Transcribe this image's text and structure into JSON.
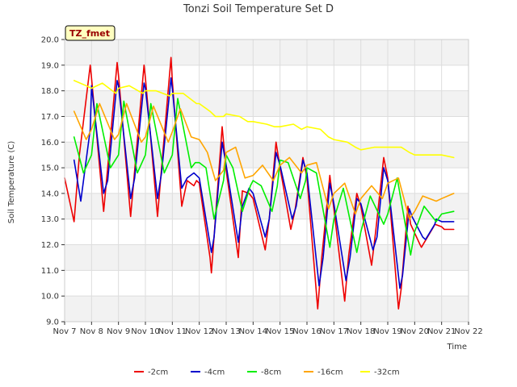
{
  "chart_data": {
    "type": "line",
    "title": "Tonzi Soil Temperature Set D",
    "xlabel": "Time",
    "ylabel": "Soil Temperature (C)",
    "badge": "TZ_fmet",
    "ylim": [
      9.0,
      20.0
    ],
    "xlim": [
      7,
      22
    ],
    "y_ticks": [
      "9.0",
      "10.0",
      "11.0",
      "12.0",
      "13.0",
      "14.0",
      "15.0",
      "16.0",
      "17.0",
      "18.0",
      "19.0",
      "20.0"
    ],
    "x_ticks": [
      {
        "t": 7,
        "label": "Nov 7"
      },
      {
        "t": 8,
        "label": "Nov 8"
      },
      {
        "t": 9,
        "label": "Nov 9"
      },
      {
        "t": 10,
        "label": "Nov 10"
      },
      {
        "t": 11,
        "label": "Nov 11"
      },
      {
        "t": 12,
        "label": "Nov 12"
      },
      {
        "t": 13,
        "label": "Nov 13"
      },
      {
        "t": 14,
        "label": "Nov 14"
      },
      {
        "t": 15,
        "label": "Nov 15"
      },
      {
        "t": 16,
        "label": "Nov 16"
      },
      {
        "t": 17,
        "label": "Nov 17"
      },
      {
        "t": 18,
        "label": "Nov 18"
      },
      {
        "t": 19,
        "label": "Nov 19"
      },
      {
        "t": 20,
        "label": "Nov 20"
      },
      {
        "t": 21,
        "label": "Nov 21"
      },
      {
        "t": 22,
        "label": "Nov 22"
      }
    ],
    "grid": true,
    "legend_position": "bottom",
    "series": [
      {
        "name": "-2cm",
        "color": "#ee0000",
        "x": [
          7.0,
          7.35,
          7.55,
          7.95,
          8.0,
          8.45,
          8.6,
          8.95,
          9.0,
          9.45,
          9.6,
          9.95,
          10.0,
          10.45,
          10.6,
          10.95,
          11.0,
          11.35,
          11.55,
          11.8,
          11.9,
          12.0,
          12.4,
          12.45,
          12.85,
          13.0,
          13.45,
          13.6,
          13.85,
          14.0,
          14.45,
          14.6,
          14.85,
          15.0,
          15.4,
          15.55,
          15.85,
          16.0,
          16.4,
          16.55,
          16.85,
          17.0,
          17.4,
          17.55,
          17.85,
          18.0,
          18.4,
          18.55,
          18.85,
          19.0,
          19.4,
          19.5,
          19.75,
          19.85,
          20.2,
          20.25,
          20.7,
          20.75,
          21.0,
          21.1,
          21.45
        ],
        "y": [
          14.6,
          12.9,
          15.5,
          19.0,
          18.5,
          13.3,
          15.0,
          19.1,
          18.6,
          13.1,
          14.9,
          19.0,
          18.5,
          13.1,
          15.0,
          19.3,
          18.4,
          13.5,
          14.5,
          14.3,
          14.5,
          14.4,
          11.5,
          10.9,
          16.6,
          14.9,
          11.5,
          14.1,
          14.0,
          13.8,
          11.8,
          13.0,
          16.0,
          15.0,
          12.6,
          13.3,
          15.4,
          14.6,
          9.5,
          11.5,
          14.7,
          13.4,
          9.8,
          11.6,
          14.0,
          13.5,
          11.2,
          12.5,
          15.4,
          14.6,
          9.5,
          10.3,
          13.5,
          12.8,
          12.0,
          11.9,
          12.7,
          12.8,
          12.7,
          12.6,
          12.6
        ]
      },
      {
        "name": "-4cm",
        "color": "#0000cc",
        "x": [
          7.35,
          7.6,
          7.95,
          8.0,
          8.45,
          8.6,
          8.95,
          9.0,
          9.45,
          9.6,
          9.95,
          10.0,
          10.45,
          10.6,
          10.95,
          11.0,
          11.35,
          11.55,
          11.8,
          11.9,
          12.0,
          12.45,
          12.55,
          12.85,
          13.0,
          13.45,
          13.6,
          13.85,
          14.0,
          14.45,
          14.6,
          14.85,
          15.0,
          15.45,
          15.6,
          15.85,
          16.0,
          16.45,
          16.6,
          16.85,
          17.0,
          17.45,
          17.6,
          17.85,
          18.0,
          18.45,
          18.6,
          18.85,
          19.0,
          19.45,
          19.55,
          19.8,
          19.9,
          20.3,
          20.4,
          20.75,
          20.8,
          21.0,
          21.2,
          21.45
        ],
        "y": [
          15.3,
          13.7,
          16.5,
          18.2,
          14.0,
          14.5,
          18.4,
          18.2,
          13.8,
          14.6,
          18.3,
          18.1,
          13.8,
          14.8,
          18.5,
          18.1,
          14.2,
          14.6,
          14.8,
          14.7,
          14.6,
          11.7,
          12.3,
          16.0,
          15.1,
          12.1,
          13.5,
          14.2,
          14.0,
          12.3,
          13.0,
          15.6,
          15.1,
          13.0,
          13.5,
          15.3,
          14.8,
          10.4,
          11.5,
          14.4,
          13.6,
          10.6,
          11.5,
          13.8,
          13.6,
          11.8,
          12.3,
          15.0,
          14.5,
          10.3,
          10.8,
          13.4,
          13.1,
          12.3,
          12.2,
          12.8,
          13.0,
          12.9,
          12.9,
          12.9
        ]
      },
      {
        "name": "-8cm",
        "color": "#00ee00",
        "x": [
          7.35,
          7.7,
          8.0,
          8.2,
          8.7,
          9.0,
          9.2,
          9.7,
          10.0,
          10.2,
          10.7,
          11.0,
          11.2,
          11.7,
          11.85,
          12.0,
          12.25,
          12.55,
          12.9,
          13.0,
          13.25,
          13.6,
          13.9,
          14.0,
          14.3,
          14.7,
          14.9,
          15.0,
          15.3,
          15.75,
          15.95,
          16.0,
          16.35,
          16.85,
          17.0,
          17.35,
          17.85,
          18.0,
          18.35,
          18.85,
          19.0,
          19.35,
          19.85,
          20.0,
          20.35,
          20.8,
          21.0,
          21.45
        ],
        "y": [
          16.2,
          14.8,
          15.5,
          17.5,
          15.0,
          15.5,
          17.6,
          14.8,
          15.5,
          17.5,
          14.8,
          15.5,
          17.7,
          15.0,
          15.2,
          15.2,
          15.0,
          13.0,
          14.5,
          15.5,
          15.0,
          13.3,
          14.3,
          14.5,
          14.3,
          13.3,
          14.3,
          15.3,
          15.2,
          13.8,
          14.5,
          15.0,
          14.8,
          11.9,
          13.0,
          14.2,
          11.7,
          12.5,
          13.9,
          12.8,
          13.2,
          14.6,
          11.6,
          12.5,
          13.5,
          12.9,
          13.2,
          13.3
        ]
      },
      {
        "name": "-16cm",
        "color": "#ffa500",
        "x": [
          7.35,
          7.8,
          8.0,
          8.3,
          8.85,
          9.0,
          9.3,
          9.85,
          10.0,
          10.3,
          10.85,
          11.0,
          11.3,
          11.7,
          12.0,
          12.3,
          12.6,
          12.9,
          13.0,
          13.35,
          13.7,
          14.0,
          14.35,
          14.75,
          15.0,
          15.35,
          15.8,
          16.0,
          16.35,
          16.8,
          17.0,
          17.4,
          17.8,
          18.0,
          18.4,
          18.8,
          19.0,
          19.4,
          19.8,
          20.0,
          20.3,
          20.8,
          21.0,
          21.45
        ],
        "y": [
          17.2,
          16.1,
          16.5,
          17.5,
          16.1,
          16.3,
          17.5,
          16.0,
          16.2,
          17.4,
          16.0,
          16.4,
          17.3,
          16.2,
          16.1,
          15.6,
          14.5,
          14.9,
          15.6,
          15.8,
          14.6,
          14.7,
          15.1,
          14.5,
          15.1,
          15.4,
          14.8,
          15.1,
          15.2,
          13.4,
          14.0,
          14.4,
          13.2,
          13.8,
          14.3,
          13.8,
          14.4,
          14.6,
          13.0,
          13.3,
          13.9,
          13.7,
          13.8,
          14.0
        ]
      },
      {
        "name": "-32cm",
        "color": "#ffff00",
        "x": [
          7.35,
          7.8,
          8.0,
          8.4,
          8.9,
          9.0,
          9.4,
          9.9,
          10.0,
          10.4,
          10.9,
          11.0,
          11.4,
          11.9,
          12.0,
          12.4,
          12.6,
          12.9,
          13.0,
          13.5,
          13.8,
          14.0,
          14.5,
          14.8,
          15.0,
          15.5,
          15.8,
          16.0,
          16.5,
          16.8,
          17.0,
          17.5,
          17.8,
          18.0,
          18.5,
          18.8,
          19.0,
          19.5,
          19.8,
          20.0,
          20.5,
          20.8,
          21.0,
          21.45
        ],
        "y": [
          18.4,
          18.2,
          18.1,
          18.3,
          17.9,
          18.1,
          18.2,
          17.9,
          18.0,
          18.0,
          17.8,
          17.9,
          17.9,
          17.5,
          17.5,
          17.2,
          17.0,
          17.0,
          17.1,
          17.0,
          16.8,
          16.8,
          16.7,
          16.6,
          16.6,
          16.7,
          16.5,
          16.6,
          16.5,
          16.2,
          16.1,
          16.0,
          15.8,
          15.7,
          15.8,
          15.8,
          15.8,
          15.8,
          15.6,
          15.5,
          15.5,
          15.5,
          15.5,
          15.4
        ]
      }
    ]
  }
}
